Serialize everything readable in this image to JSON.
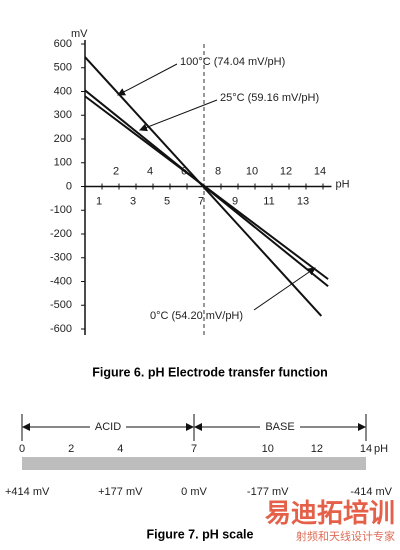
{
  "chart_data": {
    "type": "line",
    "title": "Figure 6. pH Electrode transfer function",
    "ylabel": "mV",
    "xlabel": "pH",
    "xlim": [
      0,
      14.5
    ],
    "ylim": [
      -600,
      600
    ],
    "xticks": [
      1,
      2,
      3,
      4,
      5,
      6,
      7,
      8,
      9,
      10,
      11,
      12,
      13,
      14
    ],
    "yticks": [
      -600,
      -500,
      -400,
      -300,
      -200,
      -100,
      0,
      100,
      200,
      300,
      400,
      500,
      600
    ],
    "series": [
      {
        "name": "100°C (74.04 mV/pH)",
        "color": "#111111",
        "x": [
          0,
          13.9
        ],
        "values": [
          545,
          -545
        ]
      },
      {
        "name": "25°C (59.16 mV/pH)",
        "color": "#111111",
        "x": [
          0,
          14.3
        ],
        "values": [
          405,
          -420
        ]
      },
      {
        "name": "0°C (54.20 mV/pH)",
        "color": "#111111",
        "x": [
          0,
          14.3
        ],
        "values": [
          380,
          -390
        ]
      }
    ]
  },
  "ph_scale": {
    "caption": "Figure 7. pH scale",
    "unit": "pH",
    "range": [
      0,
      14
    ],
    "ticks": [
      0,
      2,
      4,
      7,
      10,
      12,
      14
    ],
    "acid": "ACID",
    "base": "BASE",
    "mv_labels": [
      {
        "ph": 0,
        "label": "+414 mV"
      },
      {
        "ph": 4,
        "label": "+177 mV"
      },
      {
        "ph": 7,
        "label": "0 mV"
      },
      {
        "ph": 10,
        "label": "-177 mV"
      },
      {
        "ph": 14,
        "label": "-414 mV"
      }
    ]
  },
  "watermark": {
    "brand": "易迪拓培训",
    "slogan": "射频和天线设计专家"
  }
}
